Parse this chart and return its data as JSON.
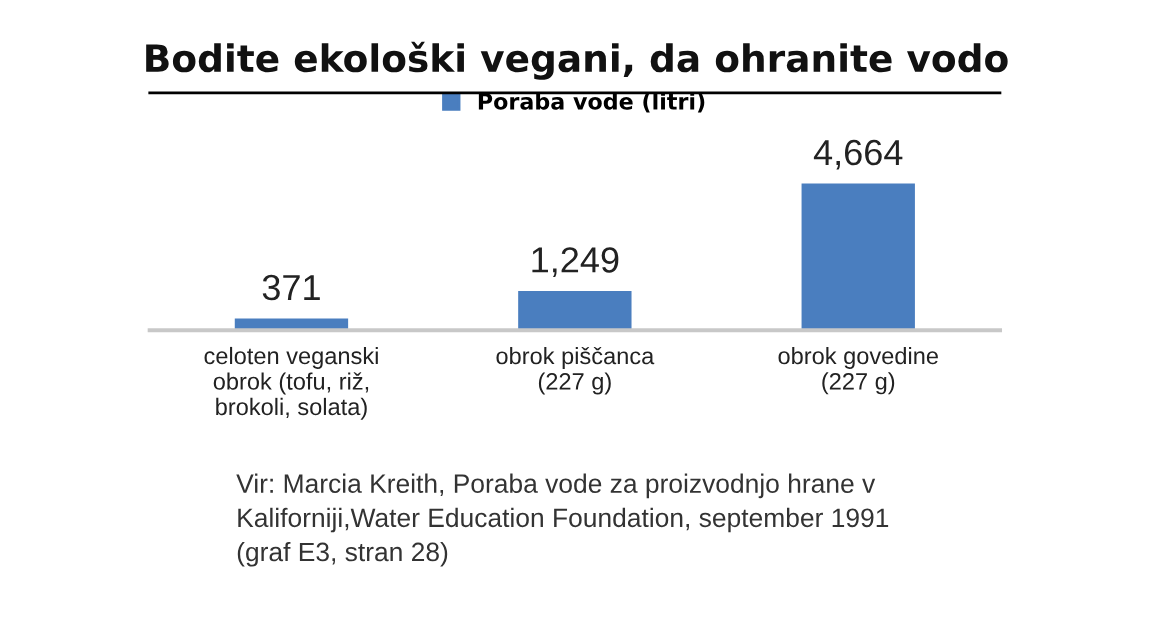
{
  "chart_data": {
    "type": "bar",
    "title": "Bodite ekološki vegani, da ohranite vodo",
    "categories": [
      "celoten veganski\nobrok (tofu, riž,\nbrokoli, solata)",
      "obrok piščanca\n(227 g)",
      "obrok govedine\n(227 g)"
    ],
    "series": [
      {
        "name": "Poraba vode (litri)",
        "color": "#4a7ebf",
        "values": [
          371,
          1249,
          4664
        ],
        "value_labels": [
          "371",
          "1,249",
          "4,664"
        ]
      }
    ],
    "legend": "top",
    "grid": false,
    "annotations": [
      "Vir: Marcia Kreith, Poraba vode za proizvodnjo hrane v\nKaliforniji,Water Education Foundation, september 1991\n(graf E3, stran 28)"
    ]
  }
}
